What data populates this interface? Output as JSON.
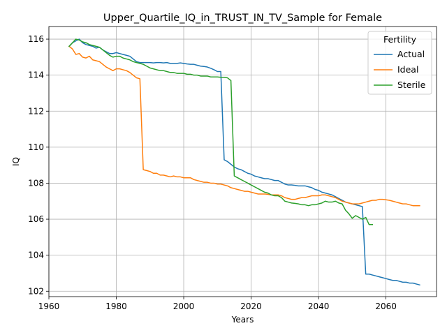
{
  "chart_data": {
    "type": "line",
    "title": "Upper_Quartile_IQ_in_TRUST_IN_TV_Sample for Female",
    "xlabel": "Years",
    "ylabel": "IQ",
    "xlim": [
      1960,
      2075
    ],
    "ylim": [
      101.7,
      116.7
    ],
    "xticks": [
      1960,
      1980,
      2000,
      2020,
      2040,
      2060
    ],
    "yticks": [
      102,
      104,
      106,
      108,
      110,
      112,
      114,
      116
    ],
    "grid": true,
    "legend": {
      "title": "Fertility",
      "placement": "top-right"
    },
    "series": [
      {
        "name": "Actual",
        "color": "#1f77b4",
        "x": [
          1966,
          1967,
          1968,
          1969,
          1970,
          1971,
          1972,
          1973,
          1974,
          1975,
          1976,
          1977,
          1978,
          1979,
          1980,
          1981,
          1982,
          1983,
          1984,
          1985,
          1986,
          1987,
          1988,
          1989,
          1990,
          1991,
          1992,
          1993,
          1994,
          1995,
          1996,
          1997,
          1998,
          1999,
          2000,
          2001,
          2002,
          2003,
          2004,
          2005,
          2006,
          2007,
          2008,
          2009,
          2010,
          2011,
          2012,
          2013,
          2014,
          2015,
          2016,
          2017,
          2018,
          2019,
          2020,
          2021,
          2022,
          2023,
          2024,
          2025,
          2026,
          2027,
          2028,
          2029,
          2030,
          2031,
          2032,
          2033,
          2034,
          2035,
          2036,
          2037,
          2038,
          2039,
          2040,
          2041,
          2042,
          2043,
          2044,
          2045,
          2046,
          2047,
          2048,
          2049,
          2050,
          2051,
          2052,
          2053,
          2054,
          2055,
          2056,
          2057,
          2058,
          2059,
          2060,
          2061,
          2062,
          2063,
          2064,
          2065,
          2066,
          2067,
          2068,
          2069,
          2070
        ],
        "y": [
          115.6,
          115.8,
          115.9,
          116.0,
          115.8,
          115.7,
          115.65,
          115.6,
          115.5,
          115.55,
          115.4,
          115.3,
          115.2,
          115.2,
          115.25,
          115.2,
          115.15,
          115.1,
          115.05,
          114.9,
          114.75,
          114.7,
          114.7,
          114.7,
          114.7,
          114.68,
          114.7,
          114.7,
          114.68,
          114.7,
          114.65,
          114.65,
          114.65,
          114.68,
          114.65,
          114.62,
          114.6,
          114.6,
          114.55,
          114.5,
          114.48,
          114.45,
          114.38,
          114.3,
          114.2,
          114.2,
          109.3,
          109.2,
          109.05,
          108.9,
          108.8,
          108.75,
          108.65,
          108.55,
          108.5,
          108.4,
          108.35,
          108.3,
          108.25,
          108.25,
          108.2,
          108.15,
          108.15,
          108.05,
          107.95,
          107.9,
          107.9,
          107.88,
          107.85,
          107.85,
          107.85,
          107.8,
          107.75,
          107.65,
          107.6,
          107.5,
          107.45,
          107.4,
          107.35,
          107.25,
          107.15,
          107.05,
          106.95,
          106.9,
          106.85,
          106.8,
          106.75,
          106.7,
          102.95,
          102.95,
          102.9,
          102.85,
          102.8,
          102.75,
          102.7,
          102.65,
          102.6,
          102.6,
          102.55,
          102.5,
          102.5,
          102.45,
          102.45,
          102.4,
          102.35
        ]
      },
      {
        "name": "Ideal",
        "color": "#ff7f0e",
        "x": [
          1966,
          1967,
          1968,
          1969,
          1970,
          1971,
          1972,
          1973,
          1974,
          1975,
          1976,
          1977,
          1978,
          1979,
          1980,
          1981,
          1982,
          1983,
          1984,
          1985,
          1986,
          1987,
          1988,
          1989,
          1990,
          1991,
          1992,
          1993,
          1994,
          1995,
          1996,
          1997,
          1998,
          1999,
          2000,
          2001,
          2002,
          2003,
          2004,
          2005,
          2006,
          2007,
          2008,
          2009,
          2010,
          2011,
          2012,
          2013,
          2014,
          2015,
          2016,
          2017,
          2018,
          2019,
          2020,
          2021,
          2022,
          2023,
          2024,
          2025,
          2026,
          2027,
          2028,
          2029,
          2030,
          2031,
          2032,
          2033,
          2034,
          2035,
          2036,
          2037,
          2038,
          2039,
          2040,
          2041,
          2042,
          2043,
          2044,
          2045,
          2046,
          2047,
          2048,
          2049,
          2050,
          2051,
          2052,
          2053,
          2054,
          2055,
          2056,
          2057,
          2058,
          2059,
          2060,
          2061,
          2062,
          2063,
          2064,
          2065,
          2066,
          2067,
          2068,
          2069,
          2070
        ],
        "y": [
          115.6,
          115.45,
          115.15,
          115.2,
          115.0,
          114.95,
          115.05,
          114.85,
          114.8,
          114.75,
          114.6,
          114.45,
          114.35,
          114.25,
          114.35,
          114.35,
          114.3,
          114.25,
          114.15,
          114.0,
          113.85,
          113.8,
          108.75,
          108.7,
          108.65,
          108.55,
          108.55,
          108.45,
          108.45,
          108.4,
          108.35,
          108.4,
          108.35,
          108.35,
          108.3,
          108.3,
          108.3,
          108.2,
          108.15,
          108.1,
          108.05,
          108.05,
          108.0,
          108.0,
          107.95,
          107.95,
          107.9,
          107.85,
          107.75,
          107.7,
          107.65,
          107.6,
          107.55,
          107.55,
          107.5,
          107.45,
          107.4,
          107.4,
          107.4,
          107.38,
          107.35,
          107.35,
          107.35,
          107.3,
          107.2,
          107.15,
          107.1,
          107.1,
          107.15,
          107.2,
          107.2,
          107.25,
          107.3,
          107.3,
          107.3,
          107.35,
          107.35,
          107.3,
          107.25,
          107.2,
          107.1,
          107.0,
          106.95,
          106.9,
          106.85,
          106.85,
          106.85,
          106.9,
          106.95,
          107.0,
          107.05,
          107.05,
          107.1,
          107.1,
          107.08,
          107.05,
          107.0,
          106.95,
          106.9,
          106.85,
          106.85,
          106.8,
          106.75,
          106.75,
          106.75
        ]
      },
      {
        "name": "Sterile",
        "color": "#2ca02c",
        "x": [
          1966,
          1967,
          1968,
          1969,
          1970,
          1971,
          1972,
          1973,
          1974,
          1975,
          1976,
          1977,
          1978,
          1979,
          1980,
          1981,
          1982,
          1983,
          1984,
          1985,
          1986,
          1987,
          1988,
          1989,
          1990,
          1991,
          1992,
          1993,
          1994,
          1995,
          1996,
          1997,
          1998,
          1999,
          2000,
          2001,
          2002,
          2003,
          2004,
          2005,
          2006,
          2007,
          2008,
          2009,
          2010,
          2011,
          2012,
          2013,
          2014,
          2015,
          2016,
          2017,
          2018,
          2019,
          2020,
          2021,
          2022,
          2023,
          2024,
          2025,
          2026,
          2027,
          2028,
          2029,
          2030,
          2031,
          2032,
          2033,
          2034,
          2035,
          2036,
          2037,
          2038,
          2039,
          2040,
          2041,
          2042,
          2043,
          2044,
          2045,
          2046,
          2047,
          2048,
          2049,
          2050,
          2051,
          2052,
          2053,
          2054,
          2055,
          2056
        ],
        "y": [
          115.6,
          115.8,
          116.0,
          115.95,
          115.85,
          115.8,
          115.7,
          115.65,
          115.6,
          115.55,
          115.4,
          115.25,
          115.1,
          115.0,
          115.05,
          115.05,
          114.95,
          114.9,
          114.85,
          114.75,
          114.7,
          114.65,
          114.6,
          114.5,
          114.4,
          114.35,
          114.3,
          114.25,
          114.25,
          114.2,
          114.15,
          114.15,
          114.1,
          114.1,
          114.1,
          114.05,
          114.05,
          114.0,
          114.0,
          113.95,
          113.95,
          113.95,
          113.9,
          113.9,
          113.9,
          113.88,
          113.88,
          113.85,
          113.7,
          108.4,
          108.3,
          108.2,
          108.1,
          108.0,
          107.9,
          107.8,
          107.7,
          107.6,
          107.5,
          107.45,
          107.35,
          107.3,
          107.3,
          107.2,
          107.0,
          106.95,
          106.9,
          106.88,
          106.85,
          106.8,
          106.8,
          106.75,
          106.8,
          106.8,
          106.85,
          106.9,
          107.0,
          106.95,
          106.95,
          107.0,
          106.9,
          106.85,
          106.5,
          106.3,
          106.05,
          106.2,
          106.1,
          106.0,
          106.1,
          105.7,
          105.7
        ]
      }
    ]
  }
}
